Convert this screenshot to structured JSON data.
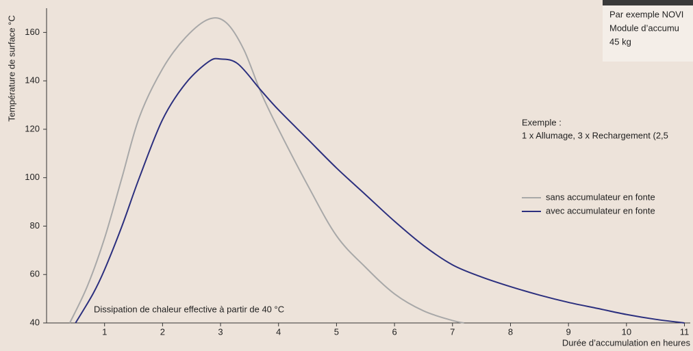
{
  "chart_data": {
    "type": "line",
    "ylabel": "Température de surface °C",
    "xlabel": "Durée d’accumulation en heures",
    "annotations": [
      "Dissipation de chaleur effective à partir de 40 °C",
      "Exemple :",
      "1 x Allumage, 3 x Rechargement (2,5"
    ],
    "inset_lines": [
      "Par exemple NOVI",
      "Module d’accumu",
      "45 kg"
    ],
    "xlim": [
      0,
      11.1
    ],
    "xticks": [
      1,
      2,
      3,
      4,
      5,
      6,
      7,
      8,
      9,
      10,
      11
    ],
    "ylim": [
      40,
      170
    ],
    "yticks": [
      40,
      60,
      80,
      100,
      120,
      140,
      160
    ],
    "series": [
      {
        "name": "sans accumulateur en fonte",
        "color": "#a8a8a8",
        "x": [
          0.4,
          0.7,
          1,
          1.3,
          1.6,
          2,
          2.4,
          2.8,
          3.1,
          3.4,
          3.7,
          4,
          4.5,
          5,
          5.5,
          6,
          6.5,
          7,
          7.2
        ],
        "values": [
          40,
          55,
          75,
          100,
          125,
          145,
          158,
          165.5,
          164,
          153,
          135,
          120,
          97,
          76,
          63,
          52,
          45,
          41,
          40
        ]
      },
      {
        "name": "avec accumulateur en fonte",
        "color": "#2b2f7e",
        "x": [
          0.5,
          0.8,
          1,
          1.3,
          1.6,
          2,
          2.4,
          2.8,
          3,
          3.3,
          3.7,
          4,
          4.5,
          5,
          5.5,
          6,
          6.5,
          7,
          7.5,
          8,
          8.5,
          9,
          9.5,
          10,
          10.5,
          11
        ],
        "values": [
          40,
          52,
          62,
          80,
          100,
          124,
          139,
          148,
          149,
          147,
          136,
          128,
          116,
          104,
          93,
          82,
          72,
          64,
          59,
          55,
          51.5,
          48.5,
          46,
          43.5,
          41.5,
          40
        ]
      }
    ]
  }
}
